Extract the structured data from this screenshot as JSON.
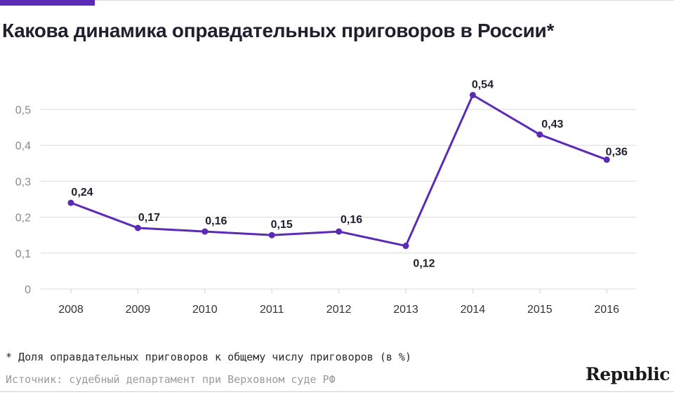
{
  "title": "Какова динамика оправдательных приговоров в России*",
  "footnote": "* Доля оправдательных приговоров к общему числу приговоров (в %)",
  "source": "Источник: судебный департамент при Верховном суде РФ",
  "logo": "Republic",
  "colors": {
    "accent": "#5b2bb5",
    "line": "#5b2bb5",
    "grid": "#d9d9d9",
    "text": "#1f1f2e"
  },
  "chart_data": {
    "type": "line",
    "title": "Какова динамика оправдательных приговоров в России*",
    "categories": [
      "2008",
      "2009",
      "2010",
      "2011",
      "2012",
      "2013",
      "2014",
      "2015",
      "2016"
    ],
    "values": [
      0.24,
      0.17,
      0.16,
      0.15,
      0.16,
      0.12,
      0.54,
      0.43,
      0.36
    ],
    "data_labels": [
      "0,24",
      "0,17",
      "0,16",
      "0,15",
      "0,16",
      "0,12",
      "0,54",
      "0,43",
      "0,36"
    ],
    "ylim": [
      0,
      0.5
    ],
    "yticks": [
      0,
      0.1,
      0.2,
      0.3,
      0.4,
      0.5
    ],
    "ytick_labels": [
      "0",
      "0,1",
      "0,2",
      "0,3",
      "0,4",
      "0,5"
    ],
    "xlabel": "",
    "ylabel": "",
    "grid": true,
    "legend": "none"
  }
}
